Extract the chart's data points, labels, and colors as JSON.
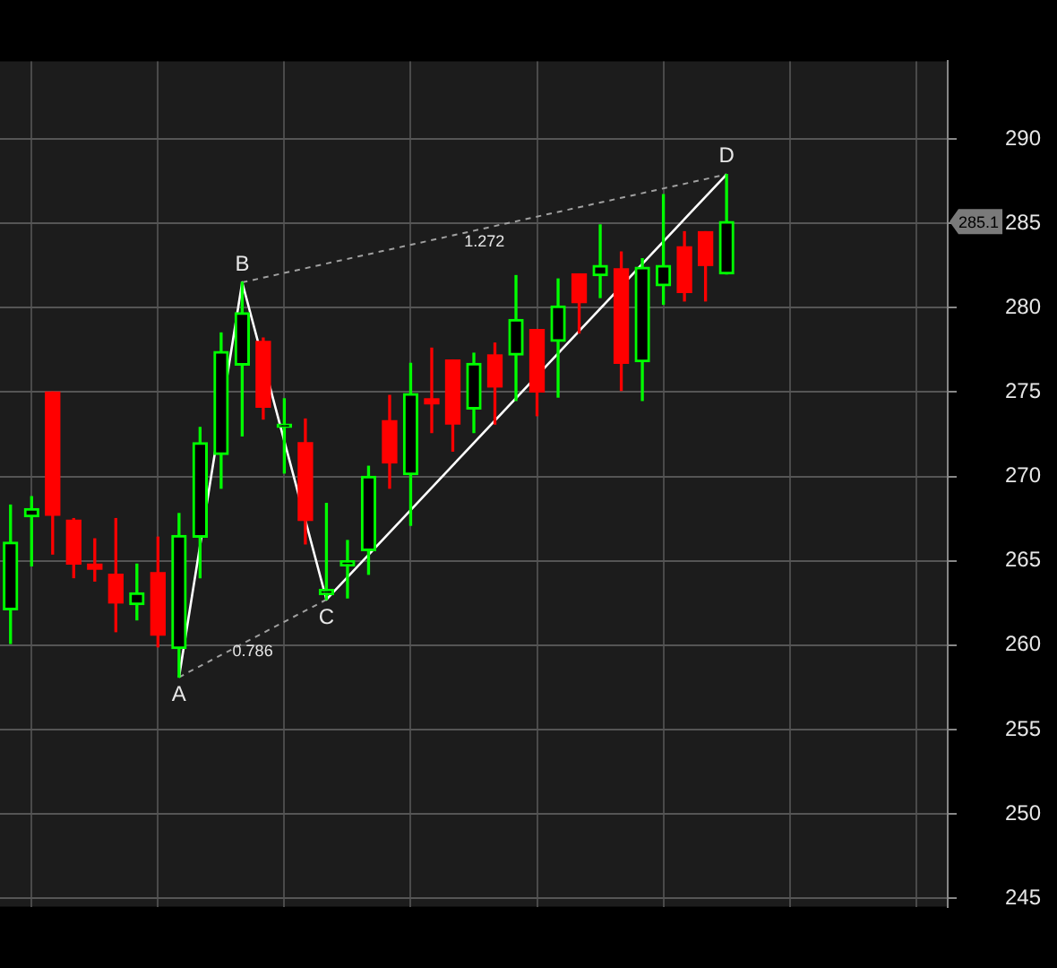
{
  "chart_data": {
    "type": "candlestick",
    "categories": [
      null,
      null,
      null,
      null,
      null,
      null,
      null,
      null,
      null,
      null,
      null,
      null,
      null,
      null,
      null,
      null,
      null,
      null,
      null,
      null,
      null,
      null,
      null,
      null,
      null,
      null,
      null,
      null,
      null,
      null,
      null,
      null,
      null,
      null,
      null,
      null,
      null,
      null,
      null,
      null,
      null,
      null,
      null,
      null,
      null
    ],
    "ohlc": [
      [
        262.1,
        268.3,
        260.1,
        266.1
      ],
      [
        267.6,
        268.8,
        264.7,
        268.1
      ],
      [
        275.0,
        275.0,
        265.4,
        267.7
      ],
      [
        267.4,
        267.5,
        264.0,
        264.8
      ],
      [
        264.8,
        266.3,
        263.8,
        264.5
      ],
      [
        264.2,
        267.5,
        260.8,
        262.5
      ],
      [
        262.4,
        264.8,
        261.5,
        263.1
      ],
      [
        264.3,
        266.4,
        259.9,
        260.6
      ],
      [
        259.8,
        267.8,
        258.1,
        266.5
      ],
      [
        266.4,
        272.9,
        264.0,
        272.0
      ],
      [
        271.3,
        278.5,
        269.3,
        277.4
      ],
      [
        276.6,
        281.5,
        272.4,
        279.7
      ],
      [
        278.0,
        278.2,
        273.4,
        274.1
      ],
      [
        272.9,
        274.6,
        270.2,
        273.1
      ],
      [
        272.0,
        273.4,
        266.0,
        267.4
      ],
      [
        263.0,
        268.4,
        262.7,
        263.3
      ],
      [
        264.7,
        266.2,
        262.8,
        265.0
      ],
      [
        265.6,
        270.6,
        264.2,
        270.0
      ],
      [
        273.3,
        274.8,
        269.3,
        270.8
      ],
      [
        270.1,
        276.7,
        267.1,
        274.9
      ],
      [
        274.6,
        277.6,
        272.6,
        274.3
      ],
      [
        276.9,
        276.9,
        271.5,
        273.1
      ],
      [
        274.0,
        277.3,
        272.6,
        276.7
      ],
      [
        277.2,
        277.9,
        273.1,
        275.3
      ],
      [
        277.2,
        281.9,
        274.5,
        279.3
      ],
      [
        278.7,
        278.7,
        273.6,
        275.0
      ],
      [
        278.0,
        281.7,
        274.7,
        280.1
      ],
      [
        282.0,
        282.0,
        278.5,
        280.3
      ],
      [
        281.9,
        284.9,
        280.6,
        282.5
      ],
      [
        282.3,
        283.3,
        275.1,
        276.7
      ],
      [
        276.8,
        282.9,
        274.5,
        282.4
      ],
      [
        281.3,
        286.7,
        280.2,
        282.5
      ],
      [
        283.6,
        284.5,
        280.4,
        280.9
      ],
      [
        284.5,
        284.5,
        280.4,
        282.5
      ],
      [
        282.0,
        287.9,
        282.0,
        285.1
      ],
      null,
      null,
      null,
      null,
      null,
      null,
      null,
      null,
      null,
      null
    ],
    "colors": [
      "#00ff00",
      "#00ff00",
      "#ff0000",
      "#ff0000",
      "#ff0000",
      "#ff0000",
      "#00ff00",
      "#ff0000",
      "#00ff00",
      "#00ff00",
      "#00ff00",
      "#00ff00",
      "#ff0000",
      "#00ff00",
      "#ff0000",
      "#00ff00",
      "#00ff00",
      "#00ff00",
      "#ff0000",
      "#00ff00",
      "#ff0000",
      "#ff0000",
      "#00ff00",
      "#ff0000",
      "#00ff00",
      "#ff0000",
      "#00ff00",
      "#ff0000",
      "#00ff00",
      "#ff0000",
      "#00ff00",
      "#00ff00",
      "#ff0000",
      "#ff0000",
      "#00ff00",
      null,
      null,
      null,
      null,
      null,
      null,
      null,
      null,
      null,
      null
    ],
    "series": [
      {
        "type": "line",
        "color": "#ffffff",
        "line_style": "solid",
        "values": [
          null,
          null,
          null,
          null,
          null,
          null,
          null,
          null,
          258.1,
          null,
          null,
          281.5,
          null,
          null,
          null,
          262.7,
          null,
          null,
          null,
          null,
          null,
          null,
          null,
          null,
          null,
          null,
          null,
          null,
          null,
          null,
          null,
          null,
          null,
          null,
          287.9,
          null,
          null,
          null,
          null,
          null,
          null,
          null,
          null,
          null,
          null
        ],
        "value_labels": [
          null,
          null,
          null,
          null,
          null,
          null,
          null,
          null,
          "A",
          null,
          null,
          "B",
          null,
          null,
          null,
          "C",
          null,
          null,
          null,
          null,
          null,
          null,
          null,
          null,
          null,
          null,
          null,
          null,
          null,
          null,
          null,
          null,
          null,
          null,
          "D",
          null,
          null,
          null,
          null,
          null,
          null,
          null,
          null,
          null,
          null
        ]
      },
      {
        "type": "line",
        "color": "#a0a0a0",
        "line_style": "dashed",
        "values": [
          null,
          null,
          null,
          null,
          null,
          null,
          null,
          null,
          258.1,
          null,
          null,
          null,
          null,
          null,
          null,
          262.7,
          null,
          null,
          null,
          null,
          null,
          null,
          null,
          null,
          null,
          null,
          null,
          null,
          null,
          null,
          null,
          null,
          null,
          null,
          null,
          null,
          null,
          null,
          null,
          null,
          null,
          null,
          null,
          null,
          null
        ]
      },
      {
        "type": "line",
        "color": "#a0a0a0",
        "line_style": "dashed",
        "values": [
          null,
          null,
          null,
          null,
          null,
          null,
          null,
          null,
          null,
          null,
          null,
          281.5,
          null,
          null,
          null,
          null,
          null,
          null,
          null,
          null,
          null,
          null,
          null,
          null,
          null,
          null,
          null,
          null,
          null,
          null,
          null,
          null,
          null,
          null,
          287.9,
          null,
          null,
          null,
          null,
          null,
          null,
          null,
          null,
          null,
          null
        ]
      }
    ],
    "annotations": [
      "0.786",
      "1.272",
      "285.1"
    ],
    "ylim": [
      244.5,
      294.6
    ],
    "yticks": [
      245,
      250,
      255,
      260,
      265,
      270,
      275,
      280,
      285,
      290
    ],
    "grid": true,
    "legend": false,
    "marker": "none",
    "tick_labels": "y"
  }
}
